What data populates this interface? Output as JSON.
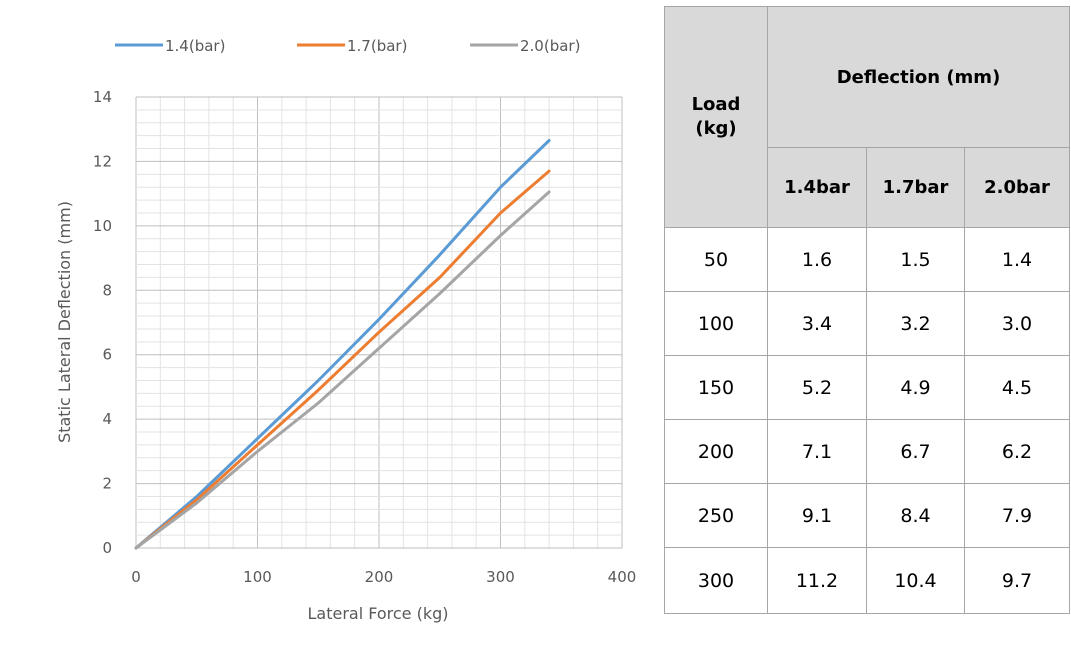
{
  "chart_data": {
    "type": "line",
    "xlabel": "Lateral Force (kg)",
    "ylabel": "Static Lateral Deflection (mm)",
    "xlim": [
      0,
      400
    ],
    "ylim": [
      0,
      14
    ],
    "x_ticks": [
      "0",
      "100",
      "200",
      "300",
      "400"
    ],
    "y_ticks": [
      "0",
      "2",
      "4",
      "6",
      "8",
      "10",
      "12",
      "14"
    ],
    "grid": true,
    "legend_position": "top",
    "series": [
      {
        "name": "1.4(bar)",
        "color": "#5b9bd5",
        "x": [
          0,
          50,
          100,
          150,
          200,
          250,
          300,
          340
        ],
        "y": [
          0,
          1.6,
          3.4,
          5.2,
          7.1,
          9.1,
          11.2,
          12.65
        ]
      },
      {
        "name": "1.7(bar)",
        "color": "#ed7d31",
        "x": [
          0,
          50,
          100,
          150,
          200,
          250,
          300,
          340
        ],
        "y": [
          0,
          1.5,
          3.2,
          4.9,
          6.7,
          8.4,
          10.4,
          11.7
        ]
      },
      {
        "name": "2.0(bar)",
        "color": "#a5a5a5",
        "x": [
          0,
          50,
          100,
          150,
          200,
          250,
          300,
          340
        ],
        "y": [
          0,
          1.4,
          3.0,
          4.5,
          6.2,
          7.9,
          9.7,
          11.05
        ]
      }
    ]
  },
  "table": {
    "load_header": "Load\n(kg)",
    "deflection_header": "Deflection (mm)",
    "sub_headers": [
      "1.4bar",
      "1.7bar",
      "2.0bar"
    ],
    "rows": [
      [
        "50",
        "1.6",
        "1.5",
        "1.4"
      ],
      [
        "100",
        "3.4",
        "3.2",
        "3.0"
      ],
      [
        "150",
        "5.2",
        "4.9",
        "4.5"
      ],
      [
        "200",
        "7.1",
        "6.7",
        "6.2"
      ],
      [
        "250",
        "9.1",
        "8.4",
        "7.9"
      ],
      [
        "300",
        "11.2",
        "10.4",
        "9.7"
      ]
    ]
  }
}
